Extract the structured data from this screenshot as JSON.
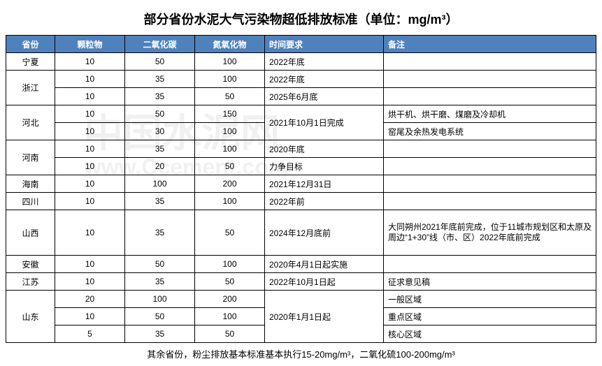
{
  "title": "部分省份水泥大气污染物超低排放标准（单位：mg/m³）",
  "columns": [
    "省份",
    "颗粒物",
    "二氧化碳",
    "氮氧化物",
    "时间要求",
    "备注"
  ],
  "rows": [
    {
      "prov": "宁夏",
      "pm": "10",
      "so2": "50",
      "nox": "100",
      "time": "2022年底",
      "note": ""
    },
    {
      "prov": "浙江",
      "prov_span": 2,
      "pm": "10",
      "so2": "35",
      "nox": "100",
      "time": "2022年底",
      "note": ""
    },
    {
      "pm": "10",
      "so2": "35",
      "nox": "50",
      "time": "2025年6月底",
      "note": ""
    },
    {
      "prov": "河北",
      "prov_span": 2,
      "pm": "10",
      "so2": "50",
      "nox": "150",
      "time": "2021年10月1日完成",
      "time_span": 2,
      "note": "烘干机、烘干磨、煤磨及冷却机"
    },
    {
      "pm": "10",
      "so2": "30",
      "nox": "100",
      "note": "窑尾及余热发电系统"
    },
    {
      "prov": "河南",
      "prov_span": 2,
      "pm": "10",
      "so2": "35",
      "nox": "100",
      "time": "2020年底",
      "note": ""
    },
    {
      "pm": "10",
      "so2": "20",
      "nox": "50",
      "time": "力争目标",
      "note": ""
    },
    {
      "prov": "海南",
      "pm": "10",
      "so2": "100",
      "nox": "200",
      "time": "2021年12月31日",
      "note": ""
    },
    {
      "prov": "四川",
      "pm": "10",
      "so2": "35",
      "nox": "100",
      "time": "2022年前",
      "note": ""
    },
    {
      "prov": "山西",
      "pm": "10",
      "so2": "35",
      "nox": "50",
      "time": "2024年12月底前",
      "note": "大同朔州2021年底前完成，位于11城市规划区和太原及周边“1+30”线（市、区）2022年底前完成",
      "tall": true
    },
    {
      "prov": "安徽",
      "pm": "10",
      "so2": "50",
      "nox": "100",
      "time": "2020年4月1日起实施",
      "note": ""
    },
    {
      "prov": "江苏",
      "pm": "10",
      "so2": "35",
      "nox": "50",
      "time": "2022年10月1日起",
      "note": "征求意见稿"
    },
    {
      "prov": "山东",
      "prov_span": 3,
      "pm": "20",
      "so2": "100",
      "nox": "200",
      "time": "2020年1月1日起",
      "time_span": 3,
      "note": "一般区域"
    },
    {
      "pm": "10",
      "so2": "50",
      "nox": "100",
      "note": "重点区域"
    },
    {
      "pm": "5",
      "so2": "35",
      "nox": "50",
      "note": "核心区域"
    }
  ],
  "footnote": "其余省份，粉尘排放基本标准基本执行15-20mg/m³，二氧化硫100-200mg/m³",
  "watermark_cn": "中国水泥网",
  "watermark_en": "www.Ccement.com"
}
